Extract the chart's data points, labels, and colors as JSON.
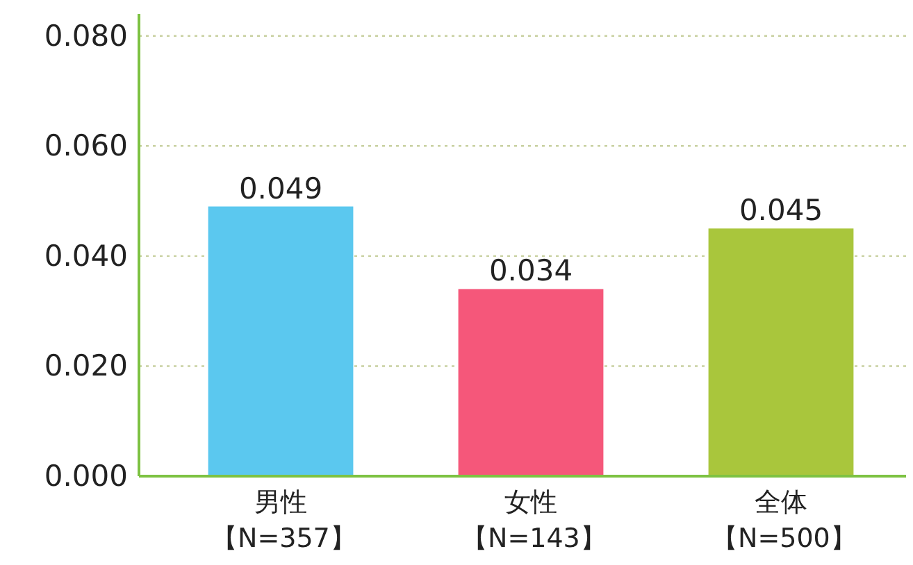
{
  "chart_data": {
    "type": "bar",
    "categories": [
      "男性【N=357】",
      "女性【N=143】",
      "全体【N=500】"
    ],
    "values": [
      0.049,
      0.034,
      0.045
    ],
    "colors": [
      "#5bc8ef",
      "#f5577a",
      "#a9c63c"
    ],
    "ylim": [
      0,
      0.084
    ],
    "yticks": [
      {
        "value": 0,
        "label": "0.000"
      },
      {
        "value": 0.02,
        "label": "0.020"
      },
      {
        "value": 0.04,
        "label": "0.040"
      },
      {
        "value": 0.06,
        "label": "0.060"
      },
      {
        "value": 0.08,
        "label": "0.080"
      }
    ],
    "grid": "y",
    "data_labels": true
  }
}
